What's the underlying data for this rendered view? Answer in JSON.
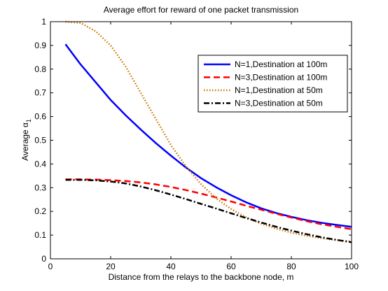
{
  "chart_data": {
    "type": "line",
    "title": "Average effort for reward of one packet transmission",
    "xlabel": "Distance from the relays to the backbone node, m",
    "ylabel_main": "Average α",
    "ylabel_sub": "1",
    "xlim": [
      0,
      100
    ],
    "ylim": [
      0,
      1
    ],
    "xticks": [
      0,
      20,
      40,
      60,
      80,
      100
    ],
    "yticks": [
      0,
      0.1,
      0.2,
      0.3,
      0.4,
      0.5,
      0.6,
      0.7,
      0.8,
      0.9,
      1
    ],
    "ytick_labels": [
      "0",
      "0.1",
      "0.2",
      "0.3",
      "0.4",
      "0.5",
      "0.6",
      "0.7",
      "0.8",
      "0.9",
      "1"
    ],
    "grid": false,
    "legend_position": "top-right",
    "series": [
      {
        "name": "N=1,Destination at 100m",
        "color": "#0000ff",
        "style": "solid",
        "x": [
          5,
          10,
          15,
          20,
          25,
          30,
          35,
          40,
          45,
          50,
          55,
          60,
          65,
          70,
          75,
          80,
          85,
          90,
          95,
          100
        ],
        "y": [
          0.905,
          0.82,
          0.745,
          0.67,
          0.605,
          0.545,
          0.488,
          0.435,
          0.385,
          0.34,
          0.302,
          0.268,
          0.238,
          0.213,
          0.193,
          0.177,
          0.163,
          0.152,
          0.143,
          0.135
        ]
      },
      {
        "name": "N=3,Destination at 100m",
        "color": "#ff0000",
        "style": "dashed",
        "x": [
          5,
          10,
          15,
          20,
          25,
          30,
          35,
          40,
          45,
          50,
          55,
          60,
          65,
          70,
          75,
          80,
          85,
          90,
          95,
          100
        ],
        "y": [
          0.335,
          0.335,
          0.334,
          0.332,
          0.328,
          0.322,
          0.314,
          0.303,
          0.29,
          0.275,
          0.259,
          0.242,
          0.224,
          0.207,
          0.19,
          0.174,
          0.159,
          0.146,
          0.135,
          0.125
        ]
      },
      {
        "name": "N=1,Destination at 50m",
        "color": "#cc7700",
        "style": "dotted",
        "x": [
          5,
          10,
          15,
          20,
          25,
          30,
          35,
          40,
          45,
          50,
          55,
          60,
          65,
          70,
          75,
          80,
          85,
          90,
          95,
          100
        ],
        "y": [
          1.0,
          0.995,
          0.96,
          0.9,
          0.81,
          0.7,
          0.59,
          0.48,
          0.39,
          0.315,
          0.255,
          0.21,
          0.175,
          0.148,
          0.127,
          0.11,
          0.097,
          0.087,
          0.079,
          0.073
        ]
      },
      {
        "name": "N=3,Destination at 50m",
        "color": "#000000",
        "style": "dashdot",
        "x": [
          5,
          10,
          15,
          20,
          25,
          30,
          35,
          40,
          45,
          50,
          55,
          60,
          65,
          70,
          75,
          80,
          85,
          90,
          95,
          100
        ],
        "y": [
          0.333,
          0.333,
          0.331,
          0.326,
          0.318,
          0.305,
          0.289,
          0.271,
          0.252,
          0.232,
          0.212,
          0.192,
          0.172,
          0.153,
          0.135,
          0.119,
          0.104,
          0.091,
          0.08,
          0.07
        ]
      }
    ]
  }
}
